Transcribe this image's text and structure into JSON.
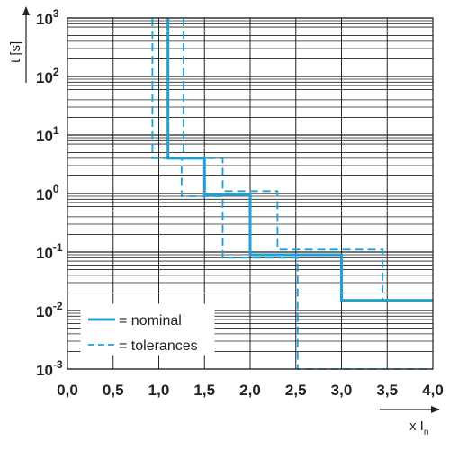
{
  "chart_data": {
    "type": "line",
    "xlabel": "x I",
    "xlabel_sub": "n",
    "ylabel": "t [s]",
    "xlim": [
      0,
      4
    ],
    "ylim_exponent": [
      -3,
      3
    ],
    "y_scale": "log",
    "grid": true,
    "legend_position": "bottom-left",
    "x_tick_labels": [
      "0,0",
      "0,5",
      "1,0",
      "1,5",
      "2,0",
      "2,5",
      "3,0",
      "3,5",
      "4,0"
    ],
    "x_tick_values": [
      0,
      0.5,
      1,
      1.5,
      2,
      2.5,
      3,
      3.5,
      4
    ],
    "y_tick_base": "10",
    "y_tick_exponents": [
      "-3",
      "-2",
      "-1",
      "0",
      "1",
      "2",
      "3"
    ],
    "y_tick_exponent_values": [
      -3,
      -2,
      -1,
      0,
      1,
      2,
      3
    ],
    "series": [
      {
        "name": "= nominal",
        "style": "solid",
        "color": "#1ea0d2",
        "x": [
          1.1,
          1.1,
          1.5,
          1.5,
          2.0,
          2.0,
          3.0,
          3.0,
          4.0
        ],
        "y": [
          1000,
          4,
          4,
          0.95,
          0.95,
          0.09,
          0.09,
          0.015,
          0.015
        ]
      },
      {
        "name": "= tolerances",
        "style": "dashed",
        "color": "#1ea0d2",
        "x": [
          0.93,
          0.93,
          1.25,
          1.25,
          1.7,
          1.7,
          2.52,
          2.52,
          4.0
        ],
        "y": [
          1000,
          4,
          4,
          0.9,
          0.9,
          0.08,
          0.08,
          0.001,
          0.001
        ]
      },
      {
        "name": "",
        "style": "dashed",
        "color": "#1ea0d2",
        "x": [
          1.27,
          1.27,
          1.7,
          1.7,
          2.3,
          2.3,
          3.45,
          3.45
        ],
        "y": [
          1000,
          4,
          4,
          1.1,
          1.1,
          0.11,
          0.11,
          0.015
        ]
      }
    ]
  }
}
